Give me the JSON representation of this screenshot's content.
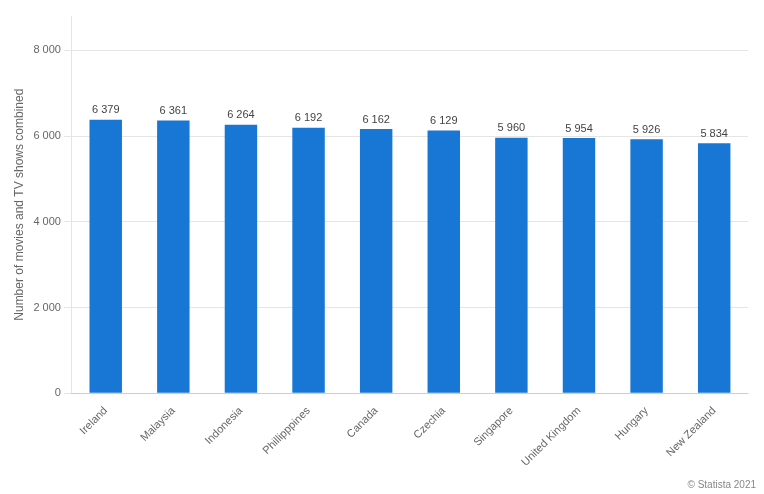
{
  "chart_data": {
    "type": "bar",
    "categories": [
      "Ireland",
      "Malaysia",
      "Indonesia",
      "Phillipppines",
      "Canada",
      "Czechia",
      "Singapore",
      "United Kingdom",
      "Hungary",
      "New Zealand"
    ],
    "values": [
      6379,
      6361,
      6264,
      6192,
      6162,
      6129,
      5960,
      5954,
      5926,
      5834
    ],
    "value_labels": [
      "6 379",
      "6 361",
      "6 264",
      "6 192",
      "6 162",
      "6 129",
      "5 960",
      "5 954",
      "5 926",
      "5 834"
    ],
    "data_labels": true,
    "color": "#1877d4",
    "ylabel": "Number of movies and TV shows combined",
    "ylim": [
      0,
      8800
    ],
    "yticks": [
      0,
      {
        "value": 2000,
        "label": "2 000"
      },
      {
        "value": 4000,
        "label": "4 000"
      },
      {
        "value": 6000,
        "label": "6 000"
      },
      {
        "value": 8000,
        "label": "8 000"
      }
    ],
    "grid": true,
    "annotations": [
      "© Statista 2021"
    ]
  }
}
